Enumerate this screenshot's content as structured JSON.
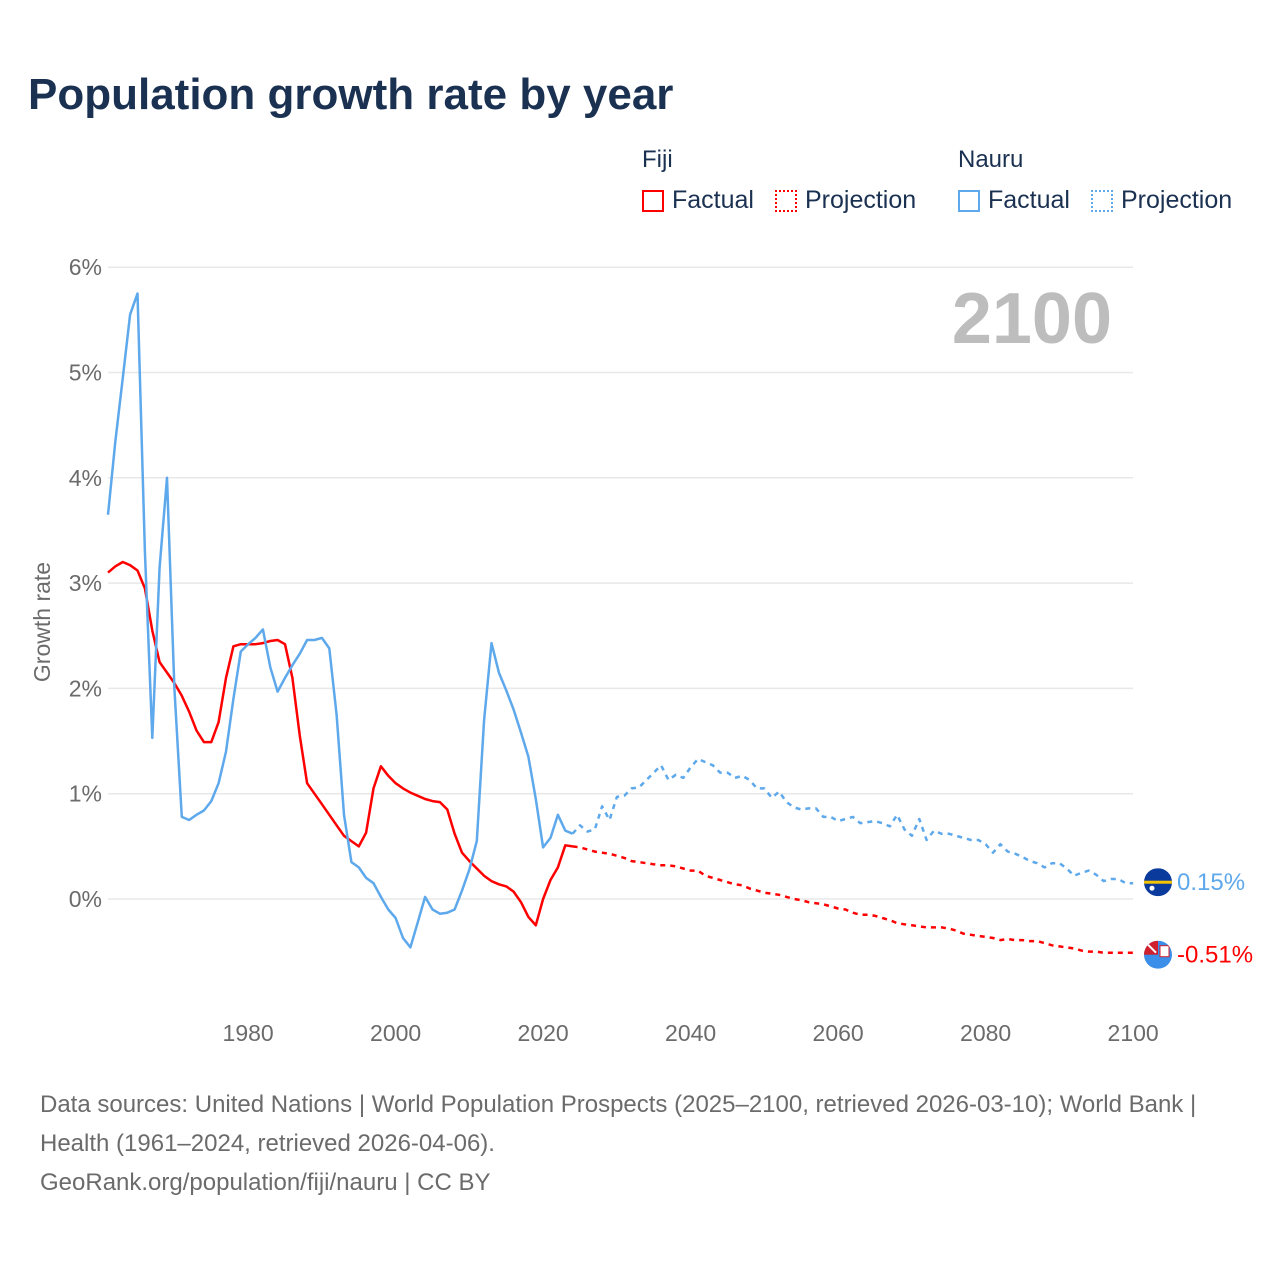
{
  "title": "Population growth rate by year",
  "legend": {
    "groups": [
      {
        "name": "Fiji",
        "color": "#ff0000",
        "factual": "Factual",
        "projection": "Projection"
      },
      {
        "name": "Nauru",
        "color": "#5ea8ec",
        "factual": "Factual",
        "projection": "Projection"
      }
    ]
  },
  "year_label": "2100",
  "footer": {
    "sources": "Data sources: United Nations | World Population Prospects (2025–2100, retrieved 2026-03-10); World Bank | Health (1961–2024, retrieved 2026-04-06).",
    "credit": "GeoRank.org/population/fiji/nauru | CC BY"
  },
  "chart_data": {
    "type": "line",
    "ylabel": "Growth rate",
    "xlabel": "",
    "xlim": [
      1961,
      2100
    ],
    "ylim": [
      -1,
      6
    ],
    "yticks": [
      0,
      1,
      2,
      3,
      4,
      5,
      6
    ],
    "ytick_labels": [
      "0%",
      "1%",
      "2%",
      "3%",
      "4%",
      "5%",
      "6%"
    ],
    "xticks": [
      1980,
      2000,
      2020,
      2040,
      2060,
      2080,
      2100
    ],
    "xtick_labels": [
      "1980",
      "2000",
      "2020",
      "2040",
      "2060",
      "2080",
      "2100"
    ],
    "grid": true,
    "series": [
      {
        "name": "Fiji",
        "kind": "Factual",
        "color": "#ff0000",
        "start": 1961,
        "values": [
          3.1,
          3.16,
          3.2,
          3.17,
          3.12,
          2.95,
          2.55,
          2.25,
          2.15,
          2.05,
          1.93,
          1.78,
          1.6,
          1.49,
          1.49,
          1.68,
          2.1,
          2.4,
          2.42,
          2.42,
          2.42,
          2.43,
          2.45,
          2.46,
          2.42,
          2.1,
          1.55,
          1.1,
          1.0,
          0.9,
          0.8,
          0.7,
          0.6,
          0.55,
          0.5,
          0.63,
          1.05,
          1.26,
          1.17,
          1.1,
          1.05,
          1.01,
          0.98,
          0.95,
          0.93,
          0.92,
          0.85,
          0.62,
          0.44,
          0.36,
          0.29,
          0.22,
          0.17,
          0.14,
          0.12,
          0.07,
          -0.03,
          -0.17,
          -0.25,
          0.0,
          0.18,
          0.3,
          0.51,
          0.5
        ]
      },
      {
        "name": "Fiji",
        "kind": "Projection",
        "color": "#ff0000",
        "start": 2025,
        "values": [
          0.49,
          0.47,
          0.45,
          0.44,
          0.43,
          0.41,
          0.39,
          0.36,
          0.35,
          0.34,
          0.33,
          0.32,
          0.32,
          0.31,
          0.29,
          0.27,
          0.27,
          0.22,
          0.2,
          0.18,
          0.16,
          0.14,
          0.13,
          0.1,
          0.08,
          0.06,
          0.05,
          0.04,
          0.02,
          0.0,
          -0.01,
          -0.03,
          -0.04,
          -0.05,
          -0.07,
          -0.09,
          -0.1,
          -0.13,
          -0.15,
          -0.15,
          -0.16,
          -0.18,
          -0.2,
          -0.23,
          -0.24,
          -0.25,
          -0.26,
          -0.27,
          -0.27,
          -0.27,
          -0.28,
          -0.3,
          -0.33,
          -0.34,
          -0.35,
          -0.36,
          -0.37,
          -0.39,
          -0.38,
          -0.39,
          -0.39,
          -0.4,
          -0.4,
          -0.42,
          -0.44,
          -0.45,
          -0.46,
          -0.47,
          -0.49,
          -0.5,
          -0.5,
          -0.51,
          -0.51,
          -0.51,
          -0.51,
          -0.51
        ]
      },
      {
        "name": "Nauru",
        "kind": "Factual",
        "color": "#5ea8ec",
        "start": 1961,
        "values": [
          3.65,
          4.35,
          4.95,
          5.55,
          5.75,
          3.3,
          1.53,
          3.15,
          4.0,
          2.0,
          0.78,
          0.75,
          0.8,
          0.84,
          0.93,
          1.1,
          1.4,
          1.9,
          2.35,
          2.42,
          2.48,
          2.56,
          2.2,
          1.97,
          2.1,
          2.22,
          2.33,
          2.46,
          2.46,
          2.48,
          2.38,
          1.75,
          0.8,
          0.35,
          0.3,
          0.2,
          0.15,
          0.02,
          -0.1,
          -0.18,
          -0.37,
          -0.46,
          -0.22,
          0.02,
          -0.1,
          -0.14,
          -0.13,
          -0.1,
          0.08,
          0.28,
          0.55,
          1.7,
          2.43,
          2.15,
          1.98,
          1.8,
          1.58,
          1.35,
          0.95,
          0.49,
          0.58,
          0.8,
          0.65,
          0.62
        ]
      },
      {
        "name": "Nauru",
        "kind": "Projection",
        "color": "#5ea8ec",
        "start": 2025,
        "values": [
          0.7,
          0.64,
          0.66,
          0.88,
          0.75,
          0.97,
          0.98,
          1.05,
          1.06,
          1.13,
          1.2,
          1.27,
          1.13,
          1.18,
          1.15,
          1.25,
          1.33,
          1.3,
          1.27,
          1.2,
          1.2,
          1.15,
          1.17,
          1.13,
          1.05,
          1.05,
          0.96,
          1.02,
          0.92,
          0.87,
          0.85,
          0.86,
          0.86,
          0.78,
          0.78,
          0.74,
          0.76,
          0.78,
          0.72,
          0.73,
          0.74,
          0.72,
          0.69,
          0.8,
          0.66,
          0.6,
          0.76,
          0.56,
          0.65,
          0.62,
          0.62,
          0.6,
          0.58,
          0.56,
          0.56,
          0.52,
          0.44,
          0.52,
          0.45,
          0.43,
          0.4,
          0.36,
          0.34,
          0.3,
          0.34,
          0.34,
          0.29,
          0.22,
          0.25,
          0.27,
          0.23,
          0.17,
          0.19,
          0.19,
          0.15,
          0.15
        ]
      }
    ],
    "end_labels": [
      {
        "name": "Nauru",
        "text": "0.15%",
        "value": 0.15,
        "color": "#5ea8ec",
        "flag": "nauru-flag"
      },
      {
        "name": "Fiji",
        "text": "-0.51%",
        "value": -0.51,
        "color": "#ff0000",
        "flag": "fiji-flag"
      }
    ]
  }
}
